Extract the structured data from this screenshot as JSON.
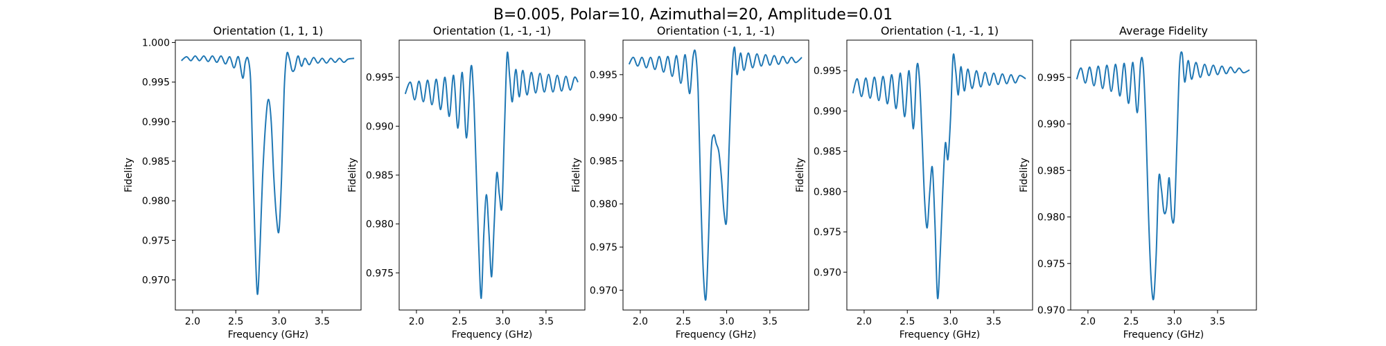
{
  "figure": {
    "title": "B=0.005, Polar=10, Azimuthal=20, Amplitude=0.01",
    "colors": {
      "line": "#1f77b4",
      "axes": "#000000",
      "background": "#ffffff"
    }
  },
  "chart_data": [
    {
      "type": "line",
      "title": "Orientation (1, 1, 1)",
      "xlabel": "Frequency (GHz)",
      "ylabel": "Fidelity",
      "xlim": [
        1.8,
        3.95
      ],
      "ylim": [
        0.9662,
        1.0003
      ],
      "xticks": [
        "2.0",
        "2.5",
        "3.0",
        "3.5"
      ],
      "yticks": [
        "0.970",
        "0.975",
        "0.980",
        "0.985",
        "0.990",
        "0.995",
        "1.000"
      ],
      "grid": false,
      "series": [
        {
          "x": [
            1.87,
            1.93,
            1.98,
            2.03,
            2.08,
            2.13,
            2.18,
            2.23,
            2.28,
            2.33,
            2.38,
            2.43,
            2.48,
            2.53,
            2.58,
            2.61,
            2.64,
            2.67,
            2.69,
            2.72,
            2.75,
            2.78,
            2.81,
            2.85,
            2.88,
            2.91,
            2.94,
            2.97,
            3.0,
            3.03,
            3.06,
            3.09,
            3.12,
            3.15,
            3.18,
            3.22,
            3.26,
            3.3,
            3.35,
            3.4,
            3.45,
            3.5,
            3.55,
            3.6,
            3.65,
            3.7,
            3.75,
            3.8,
            3.87
          ],
          "y": [
            0.9977,
            0.9982,
            0.9977,
            0.9983,
            0.9977,
            0.9983,
            0.9976,
            0.9983,
            0.9975,
            0.9983,
            0.9973,
            0.9982,
            0.9968,
            0.9982,
            0.9955,
            0.9975,
            0.998,
            0.9955,
            0.988,
            0.976,
            0.9682,
            0.974,
            0.983,
            0.9905,
            0.9928,
            0.99,
            0.983,
            0.978,
            0.9762,
            0.983,
            0.994,
            0.9985,
            0.998,
            0.9965,
            0.9966,
            0.9983,
            0.997,
            0.998,
            0.9972,
            0.9981,
            0.9974,
            0.998,
            0.9974,
            0.998,
            0.9975,
            0.998,
            0.9975,
            0.9979,
            0.998
          ]
        }
      ]
    },
    {
      "type": "line",
      "title": "Orientation (1, -1, -1)",
      "xlabel": "Frequency (GHz)",
      "ylabel": "Fidelity",
      "xlim": [
        1.8,
        3.95
      ],
      "ylim": [
        0.9712,
        0.9988
      ],
      "xticks": [
        "2.0",
        "2.5",
        "3.0",
        "3.5"
      ],
      "yticks": [
        "0.975",
        "0.980",
        "0.985",
        "0.990",
        "0.995"
      ],
      "grid": false,
      "series": [
        {
          "x": [
            1.87,
            1.93,
            1.98,
            2.03,
            2.08,
            2.13,
            2.18,
            2.23,
            2.28,
            2.33,
            2.38,
            2.43,
            2.48,
            2.53,
            2.58,
            2.63,
            2.66,
            2.69,
            2.72,
            2.75,
            2.78,
            2.81,
            2.84,
            2.87,
            2.9,
            2.93,
            2.96,
            2.99,
            3.02,
            3.05,
            3.08,
            3.11,
            3.15,
            3.19,
            3.23,
            3.28,
            3.33,
            3.38,
            3.43,
            3.48,
            3.53,
            3.58,
            3.63,
            3.68,
            3.73,
            3.78,
            3.83,
            3.87
          ],
          "y": [
            0.9933,
            0.9945,
            0.9927,
            0.9946,
            0.9925,
            0.9947,
            0.9922,
            0.9948,
            0.9917,
            0.995,
            0.991,
            0.9952,
            0.9898,
            0.9955,
            0.9888,
            0.996,
            0.9935,
            0.986,
            0.978,
            0.9724,
            0.979,
            0.983,
            0.979,
            0.9746,
            0.98,
            0.9852,
            0.983,
            0.9818,
            0.99,
            0.9974,
            0.995,
            0.9925,
            0.9958,
            0.993,
            0.9957,
            0.9932,
            0.9955,
            0.9934,
            0.9954,
            0.9935,
            0.9953,
            0.9935,
            0.9952,
            0.9936,
            0.9951,
            0.9937,
            0.995,
            0.9945
          ]
        }
      ]
    },
    {
      "type": "line",
      "title": "Orientation (-1, 1, -1)",
      "xlabel": "Frequency (GHz)",
      "ylabel": "Fidelity",
      "xlim": [
        1.8,
        3.95
      ],
      "ylim": [
        0.9677,
        0.999
      ],
      "xticks": [
        "2.0",
        "2.5",
        "3.0",
        "3.5"
      ],
      "yticks": [
        "0.970",
        "0.975",
        "0.980",
        "0.985",
        "0.990",
        "0.995"
      ],
      "grid": false,
      "series": [
        {
          "x": [
            1.87,
            1.92,
            1.97,
            2.02,
            2.07,
            2.12,
            2.17,
            2.22,
            2.27,
            2.32,
            2.37,
            2.42,
            2.47,
            2.52,
            2.57,
            2.61,
            2.64,
            2.67,
            2.7,
            2.73,
            2.76,
            2.79,
            2.82,
            2.85,
            2.88,
            2.91,
            2.94,
            2.97,
            3.0,
            3.03,
            3.06,
            3.09,
            3.12,
            3.16,
            3.2,
            3.25,
            3.3,
            3.35,
            3.4,
            3.45,
            3.5,
            3.55,
            3.6,
            3.65,
            3.7,
            3.75,
            3.8,
            3.87
          ],
          "y": [
            0.9962,
            0.997,
            0.996,
            0.997,
            0.9958,
            0.997,
            0.9956,
            0.9971,
            0.9953,
            0.9971,
            0.9948,
            0.9972,
            0.994,
            0.9973,
            0.9928,
            0.997,
            0.9975,
            0.993,
            0.981,
            0.972,
            0.969,
            0.976,
            0.986,
            0.988,
            0.987,
            0.986,
            0.983,
            0.979,
            0.9782,
            0.987,
            0.995,
            0.9982,
            0.995,
            0.9975,
            0.9955,
            0.9975,
            0.9958,
            0.9974,
            0.996,
            0.9973,
            0.9961,
            0.9972,
            0.9962,
            0.9971,
            0.9963,
            0.997,
            0.9964,
            0.997
          ]
        }
      ]
    },
    {
      "type": "line",
      "title": "Orientation (-1, -1, 1)",
      "xlabel": "Frequency (GHz)",
      "ylabel": "Fidelity",
      "xlim": [
        1.8,
        3.95
      ],
      "ylim": [
        0.9653,
        0.9988
      ],
      "xticks": [
        "2.0",
        "2.5",
        "3.0",
        "3.5"
      ],
      "yticks": [
        "0.970",
        "0.975",
        "0.980",
        "0.985",
        "0.990",
        "0.995"
      ],
      "grid": false,
      "series": [
        {
          "x": [
            1.87,
            1.92,
            1.97,
            2.02,
            2.07,
            2.12,
            2.17,
            2.22,
            2.27,
            2.32,
            2.37,
            2.42,
            2.47,
            2.52,
            2.57,
            2.61,
            2.64,
            2.67,
            2.7,
            2.73,
            2.76,
            2.79,
            2.82,
            2.85,
            2.88,
            2.91,
            2.94,
            2.97,
            3.0,
            3.03,
            3.06,
            3.09,
            3.12,
            3.16,
            3.2,
            3.25,
            3.3,
            3.35,
            3.4,
            3.45,
            3.5,
            3.55,
            3.6,
            3.65,
            3.7,
            3.75,
            3.8,
            3.87
          ],
          "y": [
            0.9922,
            0.994,
            0.9918,
            0.9941,
            0.9916,
            0.9942,
            0.9913,
            0.9943,
            0.9909,
            0.9945,
            0.9903,
            0.9947,
            0.9893,
            0.995,
            0.9878,
            0.9955,
            0.994,
            0.987,
            0.979,
            0.9755,
            0.98,
            0.983,
            0.976,
            0.9668,
            0.972,
            0.98,
            0.986,
            0.984,
            0.989,
            0.9968,
            0.995,
            0.992,
            0.9955,
            0.9925,
            0.9952,
            0.9928,
            0.995,
            0.993,
            0.9948,
            0.9932,
            0.9947,
            0.9933,
            0.9946,
            0.9934,
            0.9945,
            0.9935,
            0.9944,
            0.994
          ]
        }
      ]
    },
    {
      "type": "line",
      "title": "Average Fidelity",
      "xlabel": "Frequency (GHz)",
      "ylabel": "Fidelity",
      "xlim": [
        1.8,
        3.95
      ],
      "ylim": [
        0.97,
        0.999
      ],
      "xticks": [
        "2.0",
        "2.5",
        "3.0",
        "3.5"
      ],
      "yticks": [
        "0.970",
        "0.975",
        "0.980",
        "0.985",
        "0.990",
        "0.995"
      ],
      "grid": false,
      "series": [
        {
          "x": [
            1.87,
            1.92,
            1.97,
            2.02,
            2.07,
            2.12,
            2.17,
            2.22,
            2.27,
            2.32,
            2.37,
            2.42,
            2.47,
            2.52,
            2.57,
            2.61,
            2.64,
            2.67,
            2.7,
            2.73,
            2.76,
            2.79,
            2.82,
            2.85,
            2.88,
            2.91,
            2.94,
            2.97,
            3.0,
            3.03,
            3.06,
            3.09,
            3.12,
            3.16,
            3.2,
            3.25,
            3.3,
            3.35,
            3.4,
            3.45,
            3.5,
            3.55,
            3.6,
            3.65,
            3.7,
            3.75,
            3.8,
            3.87
          ],
          "y": [
            0.9948,
            0.996,
            0.9944,
            0.9961,
            0.9941,
            0.9962,
            0.9938,
            0.9963,
            0.9935,
            0.9964,
            0.993,
            0.9965,
            0.9922,
            0.9966,
            0.9912,
            0.9966,
            0.9962,
            0.99,
            0.9805,
            0.9735,
            0.9712,
            0.976,
            0.9842,
            0.983,
            0.9805,
            0.981,
            0.9842,
            0.98,
            0.9802,
            0.988,
            0.9962,
            0.9976,
            0.9945,
            0.9968,
            0.9948,
            0.9966,
            0.995,
            0.9964,
            0.9952,
            0.9963,
            0.9953,
            0.9962,
            0.9954,
            0.9961,
            0.9955,
            0.996,
            0.9955,
            0.9958
          ]
        }
      ]
    }
  ]
}
